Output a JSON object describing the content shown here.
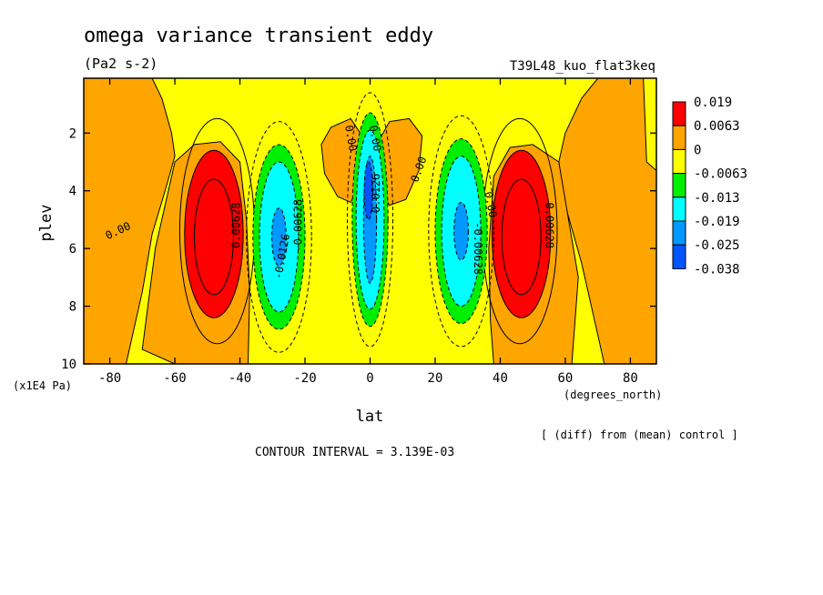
{
  "chart_data": {
    "type": "contour",
    "title": "omega variance transient eddy",
    "units": "(Pa2 s-2)",
    "run_label": "T39L48_kuo_flat3keq",
    "xlabel": "lat",
    "x_units": "(degrees_north)",
    "ylabel": "plev",
    "y_units": "(x1E4 Pa)",
    "diff_note": "[ (diff) from (mean) control ]",
    "contour_interval": "CONTOUR INTERVAL = 3.139E-03",
    "xlim": [
      -88,
      88
    ],
    "ylim": [
      10,
      0.1
    ],
    "x_ticks": [
      -80,
      -60,
      -40,
      -20,
      0,
      20,
      40,
      60,
      80
    ],
    "x_tick_labels": [
      "-80",
      "-60",
      "-40",
      "-20",
      "0",
      "20",
      "40",
      "60",
      "80"
    ],
    "y_ticks": [
      2,
      4,
      6,
      8,
      10
    ],
    "y_tick_labels": [
      "2",
      "4",
      "6",
      "8",
      "10"
    ],
    "legend": {
      "colors": [
        "#ff0000",
        "#ffa500",
        "#ffff00",
        "#00ee00",
        "#00ffff",
        "#0099ff",
        "#0055ff"
      ],
      "labels": [
        "0.019",
        "0.0063",
        "0",
        "-0.0063",
        "-0.013",
        "-0.019",
        "-0.025",
        "-0.038"
      ]
    },
    "contour_labels": [
      {
        "text": "0.00",
        "lat": -77,
        "p": 5.5,
        "rot": -25
      },
      {
        "text": "0.00",
        "lat": -7,
        "p": 2.2,
        "rot": 80
      },
      {
        "text": "0.00",
        "lat": 0.5,
        "p": 2.2,
        "rot": 80
      },
      {
        "text": "0.00",
        "lat": 16,
        "p": 3.3,
        "rot": -70
      },
      {
        "text": "0.00",
        "lat": 36,
        "p": 4.5,
        "rot": 80
      },
      {
        "text": "0.00628",
        "lat": -40,
        "p": 5.2,
        "rot": -90
      },
      {
        "text": "0.00628",
        "lat": 54,
        "p": 5.2,
        "rot": 90
      },
      {
        "text": "-0.0126",
        "lat": -26,
        "p": 6.3,
        "rot": -80
      },
      {
        "text": "-0.00628",
        "lat": -21,
        "p": 5.2,
        "rot": -90
      },
      {
        "text": "-0.00628",
        "lat": 32,
        "p": 6.0,
        "rot": 90
      },
      {
        "text": "-0.0126",
        "lat": 3,
        "p": 4.2,
        "rot": -90
      }
    ]
  }
}
